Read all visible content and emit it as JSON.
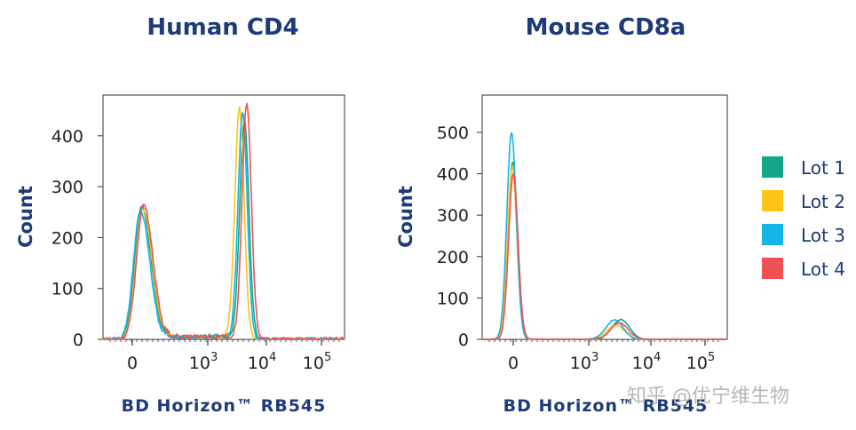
{
  "chart_data": [
    {
      "type": "line",
      "title": "Human CD4",
      "xlabel": "BD Horizon™ RB545",
      "ylabel": "Count",
      "x_ticks": [
        "0",
        "10",
        "10",
        "10"
      ],
      "x_tick_exps": [
        "",
        "3",
        "4",
        "5"
      ],
      "y_ticks": [
        0,
        100,
        200,
        300,
        400
      ],
      "ylim": [
        0,
        480
      ],
      "series": [
        {
          "name": "Lot 1",
          "peaks": [
            {
              "x": 0.16,
              "y": 262,
              "w": 0.018
            },
            {
              "x": 0.585,
              "y": 430,
              "w": 0.012
            }
          ]
        },
        {
          "name": "Lot 2",
          "peaks": [
            {
              "x": 0.165,
              "y": 258,
              "w": 0.018
            },
            {
              "x": 0.565,
              "y": 455,
              "w": 0.012
            }
          ]
        },
        {
          "name": "Lot 3",
          "peaks": [
            {
              "x": 0.155,
              "y": 252,
              "w": 0.018
            },
            {
              "x": 0.578,
              "y": 445,
              "w": 0.012
            }
          ]
        },
        {
          "name": "Lot 4",
          "peaks": [
            {
              "x": 0.168,
              "y": 265,
              "w": 0.018
            },
            {
              "x": 0.595,
              "y": 465,
              "w": 0.012
            }
          ]
        }
      ]
    },
    {
      "type": "line",
      "title": "Mouse CD8a",
      "xlabel": "BD Horizon™ RB545",
      "ylabel": "Count",
      "x_ticks": [
        "0",
        "10",
        "10",
        "10"
      ],
      "x_tick_exps": [
        "",
        "3",
        "4",
        "5"
      ],
      "y_ticks": [
        0,
        100,
        200,
        300,
        400,
        500
      ],
      "ylim": [
        0,
        590
      ],
      "series": [
        {
          "name": "Lot 1",
          "peaks": [
            {
              "x": 0.125,
              "y": 430,
              "w": 0.012
            },
            {
              "x": 0.565,
              "y": 48,
              "w": 0.022
            }
          ]
        },
        {
          "name": "Lot 2",
          "peaks": [
            {
              "x": 0.123,
              "y": 415,
              "w": 0.012
            },
            {
              "x": 0.545,
              "y": 35,
              "w": 0.022
            }
          ]
        },
        {
          "name": "Lot 3",
          "peaks": [
            {
              "x": 0.12,
              "y": 500,
              "w": 0.012
            },
            {
              "x": 0.54,
              "y": 47,
              "w": 0.022
            }
          ]
        },
        {
          "name": "Lot 4",
          "peaks": [
            {
              "x": 0.127,
              "y": 400,
              "w": 0.012
            },
            {
              "x": 0.56,
              "y": 40,
              "w": 0.022
            }
          ]
        }
      ]
    }
  ],
  "legend": {
    "items": [
      {
        "label": "Lot 1",
        "color": "#12a887"
      },
      {
        "label": "Lot 2",
        "color": "#fdc417"
      },
      {
        "label": "Lot 3",
        "color": "#13b6e6"
      },
      {
        "label": "Lot 4",
        "color": "#ef5155"
      }
    ]
  },
  "watermark": "知乎 @优宁维生物"
}
